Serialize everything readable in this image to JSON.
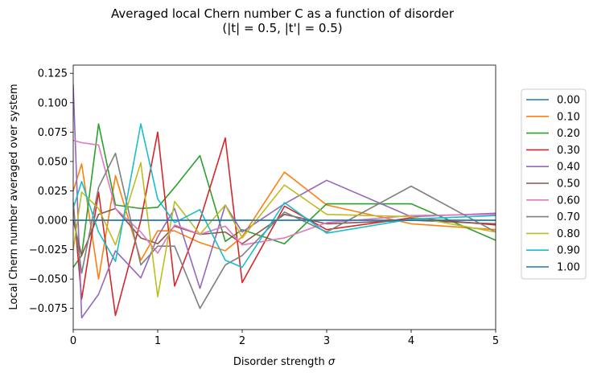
{
  "chart_data": {
    "type": "line",
    "title": "Averaged local Chern number C as a function of disorder",
    "subtitle": "(|t| = 0.5, |t'| = 0.5)",
    "xlabel_text": "Disorder strength ",
    "xlabel_symbol": "σ",
    "ylabel": "Local Chern number averaged over system",
    "xlim": [
      0,
      5
    ],
    "ylim": [
      -0.093,
      0.132
    ],
    "xticks": [
      0,
      1,
      2,
      3,
      4,
      5
    ],
    "xtick_labels": [
      "0",
      "1",
      "2",
      "3",
      "4",
      "5"
    ],
    "yticks": [
      -0.075,
      -0.05,
      -0.025,
      0.0,
      0.025,
      0.05,
      0.075,
      0.1,
      0.125
    ],
    "ytick_labels": [
      "−0.075",
      "−0.050",
      "−0.025",
      "0.000",
      "0.025",
      "0.050",
      "0.075",
      "0.100",
      "0.125"
    ],
    "grid": false,
    "legend_position": "outside-right",
    "x": [
      0,
      0.1,
      0.3,
      0.5,
      0.8,
      1.0,
      1.2,
      1.5,
      1.8,
      2.0,
      2.5,
      3.0,
      4.0,
      5.0
    ],
    "series": [
      {
        "name": "0.00",
        "color": "#1f77b4",
        "values": [
          0.0,
          0.0,
          0.0,
          0.0,
          0.0,
          0.0,
          0.0,
          0.0,
          0.0,
          0.0,
          0.0,
          0.0,
          0.0,
          0.0
        ]
      },
      {
        "name": "0.10",
        "color": "#ff7f0e",
        "values": [
          0.025,
          0.048,
          -0.05,
          0.038,
          -0.034,
          -0.009,
          -0.009,
          -0.019,
          -0.026,
          -0.014,
          0.041,
          0.013,
          -0.003,
          -0.008
        ]
      },
      {
        "name": "0.20",
        "color": "#2ca02c",
        "values": [
          -0.04,
          -0.03,
          0.082,
          0.013,
          0.01,
          0.011,
          0.028,
          0.055,
          -0.018,
          -0.008,
          -0.02,
          0.014,
          0.014,
          -0.017
        ]
      },
      {
        "name": "0.30",
        "color": "#d62728",
        "values": [
          0.015,
          -0.067,
          0.024,
          -0.081,
          0.0,
          0.075,
          -0.056,
          0.0,
          0.07,
          -0.053,
          0.012,
          -0.008,
          0.002,
          -0.004
        ]
      },
      {
        "name": "0.40",
        "color": "#9467bd",
        "values": [
          0.115,
          -0.083,
          -0.063,
          -0.026,
          -0.049,
          -0.014,
          0.01,
          -0.058,
          0.013,
          -0.01,
          0.014,
          0.034,
          0.003,
          0.006
        ]
      },
      {
        "name": "0.50",
        "color": "#8c564b",
        "values": [
          0.0,
          -0.03,
          0.005,
          0.01,
          -0.015,
          -0.02,
          -0.005,
          -0.012,
          -0.01,
          -0.02,
          0.005,
          -0.003,
          0.0,
          -0.003
        ]
      },
      {
        "name": "0.60",
        "color": "#e377c2",
        "values": [
          0.068,
          0.066,
          0.064,
          0.01,
          -0.01,
          -0.028,
          -0.004,
          -0.012,
          -0.005,
          -0.021,
          -0.015,
          -0.002,
          0.004,
          0.005
        ]
      },
      {
        "name": "0.70",
        "color": "#7f7f7f",
        "values": [
          0.01,
          -0.045,
          0.028,
          0.057,
          -0.038,
          -0.022,
          -0.022,
          -0.075,
          -0.038,
          -0.03,
          0.007,
          -0.01,
          0.029,
          -0.01
        ]
      },
      {
        "name": "0.80",
        "color": "#bcbd22",
        "values": [
          -0.025,
          0.024,
          0.01,
          -0.021,
          0.049,
          -0.065,
          0.016,
          -0.012,
          0.013,
          -0.015,
          0.03,
          0.005,
          0.003,
          -0.01
        ]
      },
      {
        "name": "0.90",
        "color": "#17becf",
        "values": [
          0.01,
          0.033,
          -0.01,
          -0.035,
          0.082,
          0.018,
          -0.002,
          0.009,
          -0.034,
          -0.04,
          0.015,
          -0.011,
          0.001,
          0.004
        ]
      },
      {
        "name": "1.00",
        "color": "#1f77b4",
        "values": [
          0.0,
          0.0,
          0.0,
          0.0,
          0.0,
          0.0,
          0.0,
          0.0,
          0.0,
          0.0,
          0.0,
          0.0,
          0.0,
          0.0
        ]
      }
    ]
  }
}
